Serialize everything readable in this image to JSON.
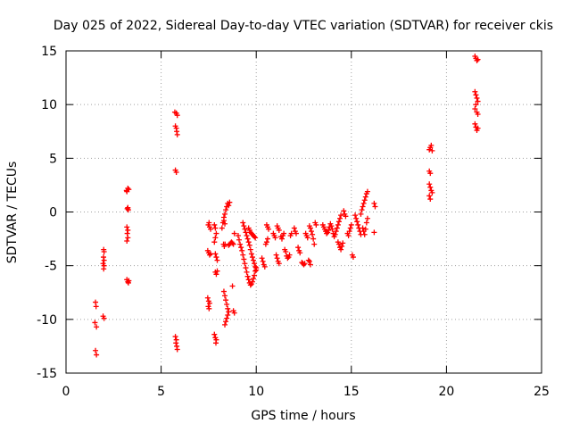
{
  "chart_data": {
    "type": "scatter",
    "title": "Day 025 of 2022, Sidereal Day-to-day VTEC variation (SDTVAR) for receiver ckis",
    "xlabel": "GPS time / hours",
    "ylabel": "SDTVAR / TECUs",
    "xlim": [
      0,
      25
    ],
    "ylim": [
      -15,
      15
    ],
    "x_ticks": [
      0,
      5,
      10,
      15,
      20,
      25
    ],
    "x_tick_labels": [
      "0",
      "5",
      "10",
      "15",
      "20",
      "25"
    ],
    "y_ticks": [
      -15,
      -10,
      -5,
      0,
      5,
      10,
      15
    ],
    "y_tick_labels": [
      "-15",
      "-10",
      "-5",
      "0",
      "5",
      "10",
      "15"
    ],
    "grid": true,
    "marker": "plus",
    "color": "#ff0000",
    "series": [
      {
        "name": "SDTVAR",
        "points": [
          [
            1.55,
            -8.4
          ],
          [
            1.58,
            -8.8
          ],
          [
            1.52,
            -10.3
          ],
          [
            1.6,
            -10.7
          ],
          [
            1.55,
            -12.9
          ],
          [
            1.6,
            -13.3
          ],
          [
            1.95,
            -9.7
          ],
          [
            2.0,
            -9.9
          ],
          [
            1.98,
            -3.5
          ],
          [
            2.0,
            -3.7
          ],
          [
            1.97,
            -4.2
          ],
          [
            2.0,
            -4.5
          ],
          [
            1.95,
            -4.8
          ],
          [
            2.0,
            -5.0
          ],
          [
            1.98,
            -5.3
          ],
          [
            3.18,
            2.0
          ],
          [
            3.25,
            2.2
          ],
          [
            3.3,
            2.1
          ],
          [
            3.2,
            1.9
          ],
          [
            3.22,
            0.3
          ],
          [
            3.28,
            0.2
          ],
          [
            3.25,
            0.4
          ],
          [
            3.2,
            -1.4
          ],
          [
            3.25,
            -1.7
          ],
          [
            3.22,
            -2.0
          ],
          [
            3.25,
            -2.4
          ],
          [
            3.2,
            -2.7
          ],
          [
            3.2,
            -6.3
          ],
          [
            3.25,
            -6.5
          ],
          [
            3.3,
            -6.4
          ],
          [
            3.28,
            -6.6
          ],
          [
            5.72,
            9.3
          ],
          [
            5.8,
            9.2
          ],
          [
            5.85,
            9.0
          ],
          [
            5.75,
            8.0
          ],
          [
            5.8,
            7.8
          ],
          [
            5.82,
            7.5
          ],
          [
            5.85,
            7.2
          ],
          [
            5.75,
            3.9
          ],
          [
            5.8,
            3.7
          ],
          [
            5.75,
            -11.6
          ],
          [
            5.8,
            -11.9
          ],
          [
            5.78,
            -12.2
          ],
          [
            5.82,
            -12.5
          ],
          [
            5.85,
            -12.8
          ],
          [
            7.45,
            -8.0
          ],
          [
            7.5,
            -8.3
          ],
          [
            7.55,
            -8.5
          ],
          [
            7.48,
            -8.8
          ],
          [
            7.52,
            -9.0
          ],
          [
            7.45,
            -3.6
          ],
          [
            7.5,
            -3.8
          ],
          [
            7.55,
            -4.0
          ],
          [
            7.6,
            -3.9
          ],
          [
            7.48,
            -1.2
          ],
          [
            7.55,
            -1.4
          ],
          [
            7.6,
            -1.6
          ],
          [
            7.52,
            -1.0
          ],
          [
            7.8,
            -1.2
          ],
          [
            7.85,
            -1.5
          ],
          [
            7.9,
            -2.0
          ],
          [
            7.85,
            -2.4
          ],
          [
            7.8,
            -2.8
          ],
          [
            7.85,
            -3.9
          ],
          [
            7.9,
            -4.2
          ],
          [
            7.95,
            -4.5
          ],
          [
            7.85,
            -5.6
          ],
          [
            7.9,
            -5.8
          ],
          [
            7.95,
            -5.5
          ],
          [
            7.8,
            -11.4
          ],
          [
            7.85,
            -11.7
          ],
          [
            7.9,
            -11.9
          ],
          [
            7.88,
            -12.2
          ],
          [
            8.2,
            -1.5
          ],
          [
            8.25,
            -1.0
          ],
          [
            8.3,
            -0.5
          ],
          [
            8.35,
            -0.2
          ],
          [
            8.4,
            0.2
          ],
          [
            8.45,
            0.5
          ],
          [
            8.5,
            0.8
          ],
          [
            8.55,
            0.6
          ],
          [
            8.6,
            0.9
          ],
          [
            8.3,
            -0.8
          ],
          [
            8.35,
            -1.1
          ],
          [
            8.28,
            -3.0
          ],
          [
            8.32,
            -3.2
          ],
          [
            8.36,
            -3.0
          ],
          [
            8.3,
            -7.4
          ],
          [
            8.35,
            -7.8
          ],
          [
            8.4,
            -8.2
          ],
          [
            8.45,
            -8.6
          ],
          [
            8.5,
            -9.0
          ],
          [
            8.55,
            -9.3
          ],
          [
            8.5,
            -9.6
          ],
          [
            8.45,
            -9.9
          ],
          [
            8.4,
            -10.2
          ],
          [
            8.35,
            -10.5
          ],
          [
            8.55,
            -3.1
          ],
          [
            8.6,
            -3.0
          ],
          [
            8.65,
            -2.9
          ],
          [
            8.7,
            -2.8
          ],
          [
            8.75,
            -2.9
          ],
          [
            8.8,
            -3.0
          ],
          [
            8.85,
            -2.0
          ],
          [
            8.75,
            -6.9
          ],
          [
            8.8,
            -9.2
          ],
          [
            8.85,
            -9.4
          ],
          [
            9.05,
            -2.2
          ],
          [
            9.1,
            -2.6
          ],
          [
            9.15,
            -3.0
          ],
          [
            9.2,
            -3.3
          ],
          [
            9.25,
            -3.6
          ],
          [
            9.3,
            -4.0
          ],
          [
            9.35,
            -4.4
          ],
          [
            9.4,
            -4.8
          ],
          [
            9.45,
            -5.2
          ],
          [
            9.5,
            -5.6
          ],
          [
            9.55,
            -6.0
          ],
          [
            9.6,
            -6.3
          ],
          [
            9.65,
            -6.6
          ],
          [
            9.7,
            -6.8
          ],
          [
            9.75,
            -6.7
          ],
          [
            9.8,
            -6.5
          ],
          [
            9.85,
            -6.2
          ],
          [
            9.9,
            -5.9
          ],
          [
            9.95,
            -5.5
          ],
          [
            10.0,
            -5.2
          ],
          [
            9.3,
            -1.0
          ],
          [
            9.35,
            -1.3
          ],
          [
            9.4,
            -1.6
          ],
          [
            9.45,
            -1.9
          ],
          [
            9.5,
            -2.2
          ],
          [
            9.55,
            -2.5
          ],
          [
            9.6,
            -2.8
          ],
          [
            9.65,
            -3.1
          ],
          [
            9.7,
            -3.5
          ],
          [
            9.75,
            -3.9
          ],
          [
            9.8,
            -4.2
          ],
          [
            9.85,
            -4.5
          ],
          [
            9.9,
            -4.8
          ],
          [
            9.95,
            -5.1
          ],
          [
            10.0,
            -5.4
          ],
          [
            9.6,
            -1.5
          ],
          [
            9.65,
            -1.7
          ],
          [
            9.7,
            -1.9
          ],
          [
            9.75,
            -2.0
          ],
          [
            9.8,
            -2.1
          ],
          [
            9.85,
            -2.2
          ],
          [
            9.9,
            -2.3
          ],
          [
            9.95,
            -2.4
          ],
          [
            10.3,
            -4.3
          ],
          [
            10.35,
            -4.6
          ],
          [
            10.4,
            -4.9
          ],
          [
            10.45,
            -5.1
          ],
          [
            10.5,
            -3.0
          ],
          [
            10.55,
            -2.8
          ],
          [
            10.6,
            -2.5
          ],
          [
            10.55,
            -1.2
          ],
          [
            10.6,
            -1.4
          ],
          [
            10.65,
            -1.6
          ],
          [
            10.9,
            -2.0
          ],
          [
            10.95,
            -2.2
          ],
          [
            11.0,
            -2.4
          ],
          [
            11.05,
            -4.0
          ],
          [
            11.1,
            -4.3
          ],
          [
            11.15,
            -4.6
          ],
          [
            11.2,
            -4.8
          ],
          [
            11.1,
            -1.3
          ],
          [
            11.15,
            -1.5
          ],
          [
            11.2,
            -1.7
          ],
          [
            11.3,
            -2.3
          ],
          [
            11.35,
            -2.5
          ],
          [
            11.4,
            -2.2
          ],
          [
            11.45,
            -2.0
          ],
          [
            11.5,
            -3.5
          ],
          [
            11.55,
            -3.7
          ],
          [
            11.6,
            -4.1
          ],
          [
            11.65,
            -4.3
          ],
          [
            11.7,
            -4.2
          ],
          [
            11.75,
            -4.0
          ],
          [
            11.8,
            -2.2
          ],
          [
            11.85,
            -2.0
          ],
          [
            12.0,
            -1.5
          ],
          [
            12.05,
            -1.8
          ],
          [
            12.1,
            -2.0
          ],
          [
            12.2,
            -3.3
          ],
          [
            12.25,
            -3.6
          ],
          [
            12.3,
            -3.8
          ],
          [
            12.4,
            -4.7
          ],
          [
            12.45,
            -4.8
          ],
          [
            12.5,
            -4.9
          ],
          [
            12.55,
            -4.8
          ],
          [
            12.6,
            -2.0
          ],
          [
            12.65,
            -2.2
          ],
          [
            12.7,
            -2.4
          ],
          [
            12.75,
            -4.5
          ],
          [
            12.8,
            -4.6
          ],
          [
            12.85,
            -4.9
          ],
          [
            12.8,
            -1.3
          ],
          [
            12.85,
            -1.5
          ],
          [
            12.9,
            -1.8
          ],
          [
            12.95,
            -2.1
          ],
          [
            13.0,
            -2.5
          ],
          [
            13.05,
            -3.0
          ],
          [
            13.1,
            -1.0
          ],
          [
            13.15,
            -1.2
          ],
          [
            13.5,
            -1.2
          ],
          [
            13.55,
            -1.4
          ],
          [
            13.6,
            -1.6
          ],
          [
            13.65,
            -1.8
          ],
          [
            13.7,
            -2.0
          ],
          [
            13.75,
            -1.9
          ],
          [
            13.8,
            -1.7
          ],
          [
            13.85,
            -1.4
          ],
          [
            13.9,
            -1.1
          ],
          [
            13.95,
            -1.3
          ],
          [
            14.0,
            -1.6
          ],
          [
            14.05,
            -2.0
          ],
          [
            14.1,
            -2.3
          ],
          [
            14.15,
            -2.1
          ],
          [
            14.2,
            -1.8
          ],
          [
            14.25,
            -1.5
          ],
          [
            14.3,
            -1.2
          ],
          [
            14.35,
            -0.9
          ],
          [
            14.4,
            -0.6
          ],
          [
            14.45,
            -0.3
          ],
          [
            14.3,
            -2.8
          ],
          [
            14.35,
            -3.0
          ],
          [
            14.4,
            -3.3
          ],
          [
            14.45,
            -3.5
          ],
          [
            14.5,
            -3.2
          ],
          [
            14.55,
            -2.9
          ],
          [
            14.6,
            0.1
          ],
          [
            14.65,
            -0.2
          ],
          [
            14.7,
            -0.4
          ],
          [
            14.8,
            -2.0
          ],
          [
            14.85,
            -2.2
          ],
          [
            14.9,
            -1.8
          ],
          [
            14.95,
            -1.5
          ],
          [
            15.0,
            -1.2
          ],
          [
            15.05,
            -4.0
          ],
          [
            15.1,
            -4.2
          ],
          [
            15.2,
            -0.3
          ],
          [
            15.25,
            -0.6
          ],
          [
            15.3,
            -0.9
          ],
          [
            15.35,
            -1.2
          ],
          [
            15.4,
            -1.5
          ],
          [
            15.45,
            -1.8
          ],
          [
            15.5,
            -2.1
          ],
          [
            15.5,
            -0.2
          ],
          [
            15.55,
            0.2
          ],
          [
            15.6,
            0.5
          ],
          [
            15.65,
            0.8
          ],
          [
            15.7,
            1.1
          ],
          [
            15.75,
            1.4
          ],
          [
            15.8,
            1.7
          ],
          [
            15.85,
            1.9
          ],
          [
            15.6,
            -1.5
          ],
          [
            15.65,
            -1.8
          ],
          [
            15.7,
            -2.1
          ],
          [
            15.75,
            -1.6
          ],
          [
            15.8,
            -1.0
          ],
          [
            15.85,
            -0.6
          ],
          [
            16.2,
            0.8
          ],
          [
            16.25,
            0.5
          ],
          [
            16.2,
            -1.9
          ],
          [
            19.1,
            5.8
          ],
          [
            19.15,
            6.0
          ],
          [
            19.2,
            6.2
          ],
          [
            19.25,
            5.7
          ],
          [
            19.1,
            3.8
          ],
          [
            19.15,
            3.6
          ],
          [
            19.1,
            2.6
          ],
          [
            19.15,
            2.3
          ],
          [
            19.2,
            2.0
          ],
          [
            19.25,
            1.8
          ],
          [
            19.1,
            1.5
          ],
          [
            19.15,
            1.2
          ],
          [
            21.5,
            14.5
          ],
          [
            21.55,
            14.3
          ],
          [
            21.6,
            14.1
          ],
          [
            21.65,
            14.2
          ],
          [
            21.5,
            11.2
          ],
          [
            21.55,
            10.9
          ],
          [
            21.6,
            10.6
          ],
          [
            21.65,
            10.3
          ],
          [
            21.55,
            10.0
          ],
          [
            21.5,
            9.6
          ],
          [
            21.6,
            9.3
          ],
          [
            21.65,
            9.1
          ],
          [
            21.5,
            8.2
          ],
          [
            21.55,
            7.9
          ],
          [
            21.6,
            7.6
          ],
          [
            21.65,
            7.8
          ]
        ]
      }
    ]
  }
}
